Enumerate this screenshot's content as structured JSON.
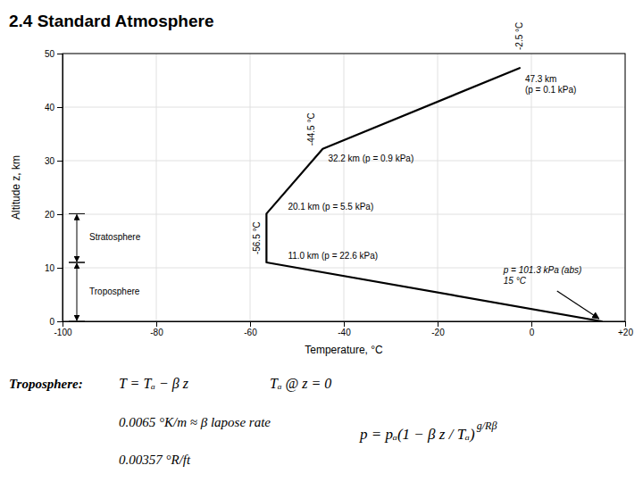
{
  "chart_data": {
    "type": "line",
    "title": "2.4  Standard Atmosphere",
    "xlabel": "Temperature, °C",
    "ylabel": "Altitude z, km",
    "x": [
      15,
      -56.5,
      -56.5,
      -44.5,
      -2.5
    ],
    "values": [
      0,
      11.0,
      20.1,
      32.2,
      47.3
    ],
    "color": "#000000",
    "xlim": [
      -100,
      20
    ],
    "ylim": [
      0,
      50
    ],
    "xticks": [
      -100,
      -80,
      -60,
      -40,
      -20,
      0,
      {
        "value": 20,
        "label": "+20"
      }
    ],
    "yticks": [
      0,
      10,
      20,
      30,
      40,
      50
    ],
    "grid": true,
    "annotations": [
      "-2.5 °C",
      "-44.5 °C",
      "-56.5 °C",
      "47.3 km\n(p = 0.1 kPa)",
      "32.2 km (p = 0.9 kPa)",
      "20.1 km (p = 5.5 kPa)",
      "11.0 km (p = 22.6 kPa)",
      "p = 101.3 kPa (abs)\n15 °C",
      "Stratosphere",
      "Troposphere",
      "Troposphere:",
      "T = Tₐ − β z",
      "Tₐ @ z = 0",
      "0.0065 °K/m ≈ β lapose rate",
      "0.00357 °R/ft",
      "p = pₐ(1 − β z / Tₐ)",
      "g/Rβ"
    ]
  }
}
